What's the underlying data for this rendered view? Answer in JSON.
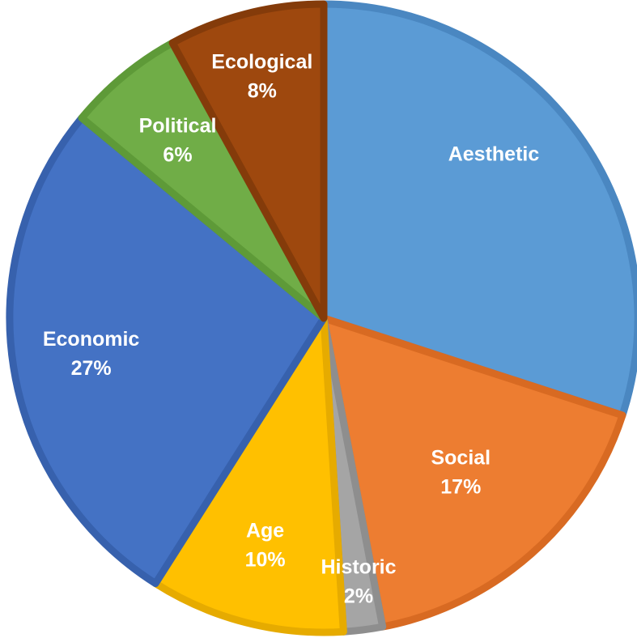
{
  "chart_data": {
    "type": "pie",
    "title": "",
    "slices": [
      {
        "category": "Aesthetic",
        "value": 30,
        "label": "",
        "color": "#5b9bd5",
        "edge": "#4a87c1"
      },
      {
        "category": "Social",
        "value": 17,
        "label": "17%",
        "color": "#ed7d31",
        "edge": "#d86a22"
      },
      {
        "category": "Historic",
        "value": 2,
        "label": "2%",
        "color": "#a5a5a5",
        "edge": "#8e8e8e"
      },
      {
        "category": "Age",
        "value": 10,
        "label": "10%",
        "color": "#ffc000",
        "edge": "#e6ab00"
      },
      {
        "category": "Economic",
        "value": 27,
        "label": "27%",
        "color": "#4472c4",
        "edge": "#3761ad"
      },
      {
        "category": "Political",
        "value": 6,
        "label": "6%",
        "color": "#70ad47",
        "edge": "#5e9a38"
      },
      {
        "category": "Ecological",
        "value": 8,
        "label": "8%",
        "color": "#9e480e",
        "edge": "#843b0a"
      }
    ],
    "legend": "none",
    "data_labels": "category and percent, inside slices"
  }
}
